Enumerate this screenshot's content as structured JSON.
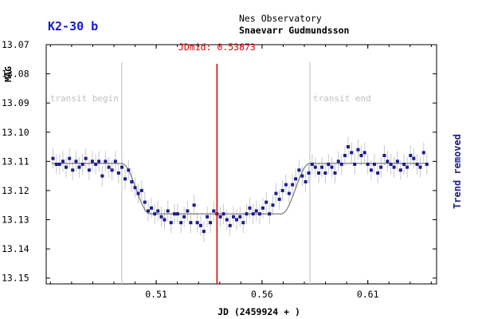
{
  "chart_data": {
    "type": "scatter",
    "title": "K2-30 b",
    "observatory": "Nes Observatory",
    "observer": "Snaevarr Gudmundsson",
    "xlabel": "JD (2459924 + )",
    "ylabel": "MAG",
    "right_label": "Trend removed",
    "xlim": [
      0.458,
      0.6425
    ],
    "ylim": [
      13.07,
      13.152
    ],
    "y_inverted": true,
    "x_ticks": [
      "0.51",
      "0.56",
      "0.61"
    ],
    "x_tick_values": [
      0.51,
      0.56,
      0.61
    ],
    "y_ticks": [
      "13.07",
      "13.08",
      "13.09",
      "13.10",
      "13.11",
      "13.12",
      "13.13",
      "13.14",
      "13.15"
    ],
    "y_tick_values": [
      13.07,
      13.08,
      13.09,
      13.1,
      13.11,
      13.12,
      13.13,
      13.14,
      13.15
    ],
    "transit_begin": {
      "label": "transit begin",
      "x": 0.4937
    },
    "transit_end": {
      "label": "transit end",
      "x": 0.5826
    },
    "jd_mid": {
      "label": "JDmid: 0.53873",
      "x": 0.53873
    },
    "baseline_mag": 13.1107,
    "depth_mag": 0.0173,
    "colors": {
      "points": "#1c1c8c",
      "error_bars": "#c8c8c8",
      "model": "#707070",
      "transit_lines": "#c8c8c8",
      "jdmid_line": "#e00000",
      "title": "#1a1ad0",
      "right_label": "#20208a"
    },
    "points": [
      [
        0.4612,
        13.109
      ],
      [
        0.4628,
        13.111
      ],
      [
        0.4643,
        13.111
      ],
      [
        0.4659,
        13.11
      ],
      [
        0.4674,
        13.112
      ],
      [
        0.469,
        13.109
      ],
      [
        0.4705,
        13.113
      ],
      [
        0.4721,
        13.11
      ],
      [
        0.4736,
        13.112
      ],
      [
        0.4752,
        13.111
      ],
      [
        0.4767,
        13.109
      ],
      [
        0.4783,
        13.113
      ],
      [
        0.4798,
        13.11
      ],
      [
        0.4814,
        13.111
      ],
      [
        0.4829,
        13.11
      ],
      [
        0.4845,
        13.115
      ],
      [
        0.486,
        13.11
      ],
      [
        0.4876,
        13.112
      ],
      [
        0.4891,
        13.113
      ],
      [
        0.4907,
        13.11
      ],
      [
        0.4922,
        13.114
      ],
      [
        0.4938,
        13.112
      ],
      [
        0.4953,
        13.116
      ],
      [
        0.4969,
        13.113
      ],
      [
        0.4984,
        13.117
      ],
      [
        0.5,
        13.119
      ],
      [
        0.5015,
        13.121
      ],
      [
        0.5031,
        13.12
      ],
      [
        0.5046,
        13.124
      ],
      [
        0.5062,
        13.127
      ],
      [
        0.5077,
        13.126
      ],
      [
        0.5093,
        13.128
      ],
      [
        0.5108,
        13.127
      ],
      [
        0.5124,
        13.129
      ],
      [
        0.5139,
        13.13
      ],
      [
        0.5155,
        13.127
      ],
      [
        0.517,
        13.131
      ],
      [
        0.5186,
        13.128
      ],
      [
        0.5201,
        13.128
      ],
      [
        0.5217,
        13.131
      ],
      [
        0.5232,
        13.129
      ],
      [
        0.5248,
        13.127
      ],
      [
        0.5263,
        13.131
      ],
      [
        0.5279,
        13.125
      ],
      [
        0.5294,
        13.131
      ],
      [
        0.531,
        13.132
      ],
      [
        0.5325,
        13.134
      ],
      [
        0.5341,
        13.129
      ],
      [
        0.5356,
        13.131
      ],
      [
        0.5372,
        13.127
      ],
      [
        0.5387,
        13.128
      ],
      [
        0.5403,
        13.129
      ],
      [
        0.5418,
        13.128
      ],
      [
        0.5434,
        13.13
      ],
      [
        0.5449,
        13.132
      ],
      [
        0.5465,
        13.129
      ],
      [
        0.548,
        13.13
      ],
      [
        0.5496,
        13.129
      ],
      [
        0.5511,
        13.131
      ],
      [
        0.5527,
        13.128
      ],
      [
        0.5542,
        13.126
      ],
      [
        0.5558,
        13.128
      ],
      [
        0.5573,
        13.127
      ],
      [
        0.5589,
        13.128
      ],
      [
        0.5604,
        13.126
      ],
      [
        0.562,
        13.124
      ],
      [
        0.5635,
        13.128
      ],
      [
        0.5651,
        13.125
      ],
      [
        0.5666,
        13.121
      ],
      [
        0.5682,
        13.123
      ],
      [
        0.5697,
        13.12
      ],
      [
        0.5713,
        13.118
      ],
      [
        0.5728,
        13.121
      ],
      [
        0.5744,
        13.118
      ],
      [
        0.5759,
        13.116
      ],
      [
        0.5775,
        13.113
      ],
      [
        0.579,
        13.115
      ],
      [
        0.5806,
        13.117
      ],
      [
        0.5821,
        13.114
      ],
      [
        0.5837,
        13.111
      ],
      [
        0.5852,
        13.112
      ],
      [
        0.5868,
        13.114
      ],
      [
        0.5883,
        13.112
      ],
      [
        0.5899,
        13.114
      ],
      [
        0.5914,
        13.111
      ],
      [
        0.593,
        13.112
      ],
      [
        0.5945,
        13.114
      ],
      [
        0.5961,
        13.11
      ],
      [
        0.5976,
        13.111
      ],
      [
        0.5992,
        13.108
      ],
      [
        0.6007,
        13.105
      ],
      [
        0.6023,
        13.107
      ],
      [
        0.6038,
        13.111
      ],
      [
        0.6054,
        13.106
      ],
      [
        0.6069,
        13.108
      ],
      [
        0.6085,
        13.107
      ],
      [
        0.61,
        13.111
      ],
      [
        0.6116,
        13.113
      ],
      [
        0.6131,
        13.111
      ],
      [
        0.6147,
        13.114
      ],
      [
        0.6162,
        13.112
      ],
      [
        0.6178,
        13.108
      ],
      [
        0.6193,
        13.11
      ],
      [
        0.6209,
        13.111
      ],
      [
        0.6224,
        13.112
      ],
      [
        0.624,
        13.11
      ],
      [
        0.6255,
        13.113
      ],
      [
        0.6271,
        13.111
      ],
      [
        0.6286,
        13.112
      ],
      [
        0.6302,
        13.108
      ],
      [
        0.6317,
        13.109
      ],
      [
        0.6333,
        13.111
      ],
      [
        0.6348,
        13.112
      ],
      [
        0.6364,
        13.107
      ],
      [
        0.6379,
        13.111
      ]
    ],
    "error_bar_mag": 0.0035,
    "grid": false,
    "legend": "none"
  }
}
